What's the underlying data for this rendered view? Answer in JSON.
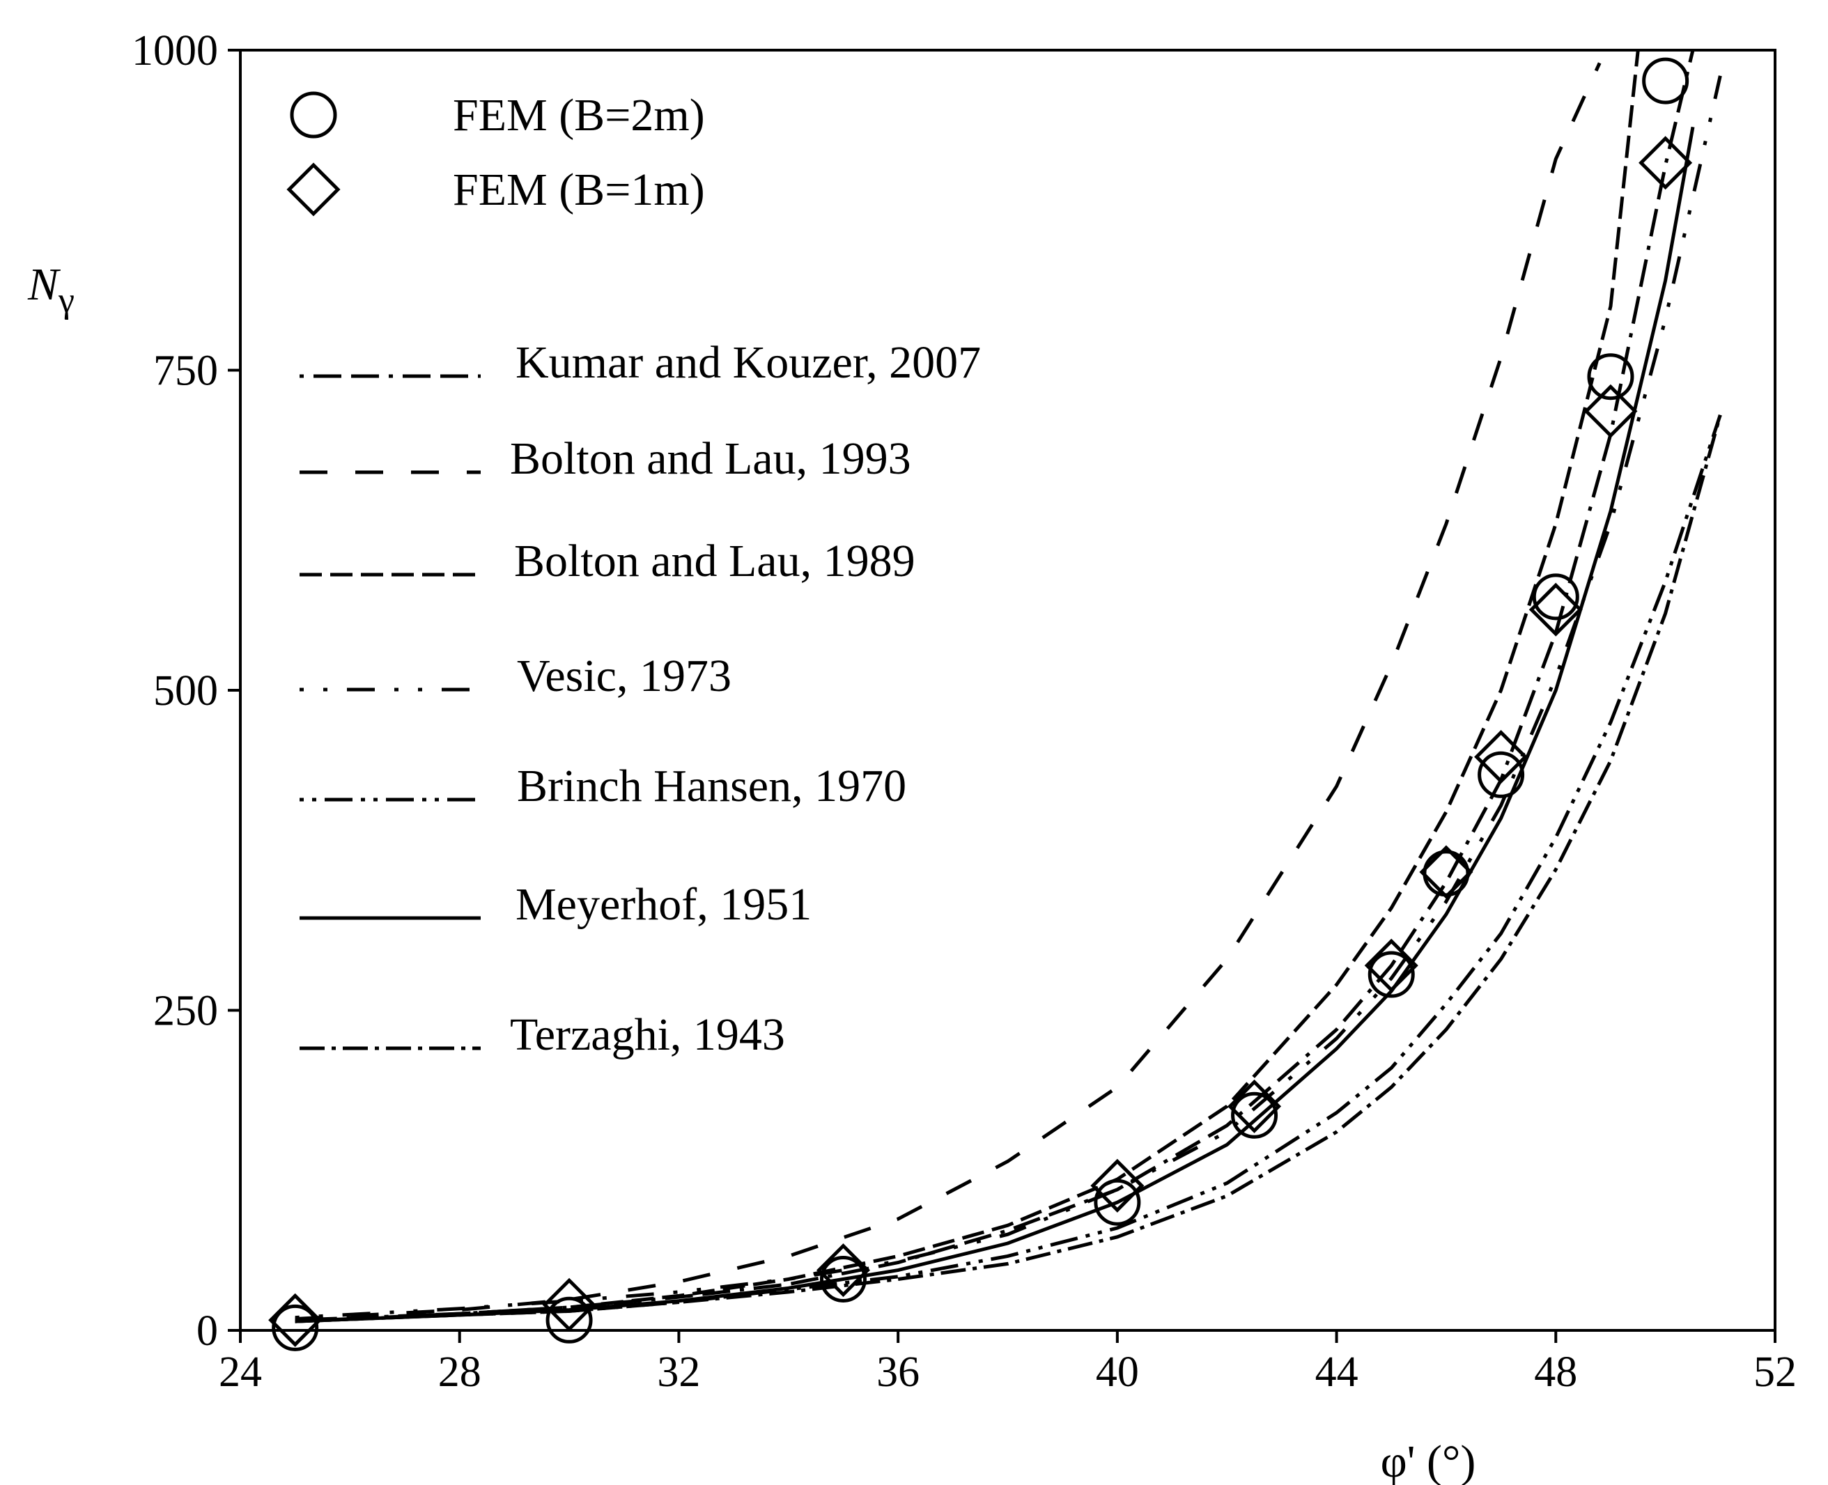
{
  "chart_data": {
    "type": "line",
    "title": "",
    "xlabel": "φ' (°)",
    "ylabel": "N",
    "ylabel_subscript": "γ",
    "xlim": [
      24,
      52
    ],
    "ylim": [
      0,
      1000
    ],
    "x_ticks": [
      24,
      28,
      32,
      36,
      40,
      44,
      48,
      52
    ],
    "y_ticks": [
      0,
      250,
      500,
      750,
      1000
    ],
    "grid": false,
    "legend_position": "top-left",
    "markers": [
      {
        "name": "FEM (B=2m)",
        "symbol": "circle",
        "points": [
          [
            25,
            2
          ],
          [
            30,
            8
          ],
          [
            35,
            40
          ],
          [
            40,
            100
          ],
          [
            42.5,
            168
          ],
          [
            45,
            278
          ],
          [
            46,
            357
          ],
          [
            47,
            434
          ],
          [
            48,
            573
          ],
          [
            49,
            745
          ],
          [
            50,
            976
          ]
        ]
      },
      {
        "name": "FEM (B=1m)",
        "symbol": "diamond",
        "points": [
          [
            25,
            8
          ],
          [
            30,
            20
          ],
          [
            35,
            47
          ],
          [
            40,
            113
          ],
          [
            42.5,
            175
          ],
          [
            45,
            285
          ],
          [
            46,
            358
          ],
          [
            47,
            448
          ],
          [
            48,
            563
          ],
          [
            49,
            718
          ],
          [
            50,
            912
          ]
        ]
      }
    ],
    "series": [
      {
        "name": "Kumar and Kouzer, 2007",
        "dash": "6 14 40 14 40 14",
        "points": [
          [
            25,
            8
          ],
          [
            28,
            13
          ],
          [
            30,
            18
          ],
          [
            32,
            26
          ],
          [
            34,
            36
          ],
          [
            36,
            53
          ],
          [
            38,
            78
          ],
          [
            40,
            110
          ],
          [
            42,
            160
          ],
          [
            44,
            235
          ],
          [
            45,
            285
          ],
          [
            46,
            350
          ],
          [
            47,
            430
          ],
          [
            48,
            545
          ],
          [
            49,
            700
          ],
          [
            50,
            910
          ],
          [
            50.5,
            1000
          ]
        ]
      },
      {
        "name": "Bolton and Lau, 1993",
        "dash": "40 40",
        "points": [
          [
            25,
            9
          ],
          [
            28,
            16
          ],
          [
            30,
            24
          ],
          [
            32,
            38
          ],
          [
            34,
            58
          ],
          [
            36,
            87
          ],
          [
            38,
            132
          ],
          [
            40,
            190
          ],
          [
            42,
            290
          ],
          [
            44,
            425
          ],
          [
            45,
            520
          ],
          [
            46,
            630
          ],
          [
            47,
            760
          ],
          [
            48,
            915
          ],
          [
            48.8,
            990
          ]
        ]
      },
      {
        "name": "Bolton and Lau, 1989",
        "dash": "32 12",
        "points": [
          [
            25,
            7
          ],
          [
            28,
            13
          ],
          [
            30,
            18
          ],
          [
            32,
            27
          ],
          [
            34,
            40
          ],
          [
            36,
            58
          ],
          [
            38,
            82
          ],
          [
            40,
            118
          ],
          [
            42,
            175
          ],
          [
            44,
            270
          ],
          [
            45,
            330
          ],
          [
            46,
            405
          ],
          [
            47,
            500
          ],
          [
            48,
            630
          ],
          [
            49,
            800
          ],
          [
            49.5,
            1000
          ]
        ]
      },
      {
        "name": "Vesic, 1973",
        "dash": "6 28 6 28 40 28",
        "points": [
          [
            25,
            10
          ],
          [
            28,
            17
          ],
          [
            30,
            23
          ],
          [
            32,
            30
          ],
          [
            34,
            40
          ],
          [
            36,
            54
          ],
          [
            38,
            75
          ],
          [
            40,
            110
          ],
          [
            42,
            155
          ],
          [
            44,
            228
          ],
          [
            45,
            275
          ],
          [
            46,
            335
          ],
          [
            47,
            410
          ],
          [
            48,
            510
          ],
          [
            49,
            630
          ],
          [
            50,
            790
          ],
          [
            51,
            980
          ]
        ]
      },
      {
        "name": "Brinch Hansen, 1970",
        "dash": "6 12 6 12 40 12",
        "points": [
          [
            25,
            7
          ],
          [
            28,
            12
          ],
          [
            30,
            15
          ],
          [
            32,
            22
          ],
          [
            34,
            32
          ],
          [
            36,
            42
          ],
          [
            38,
            58
          ],
          [
            40,
            80
          ],
          [
            42,
            115
          ],
          [
            44,
            170
          ],
          [
            45,
            205
          ],
          [
            46,
            255
          ],
          [
            47,
            310
          ],
          [
            48,
            385
          ],
          [
            49,
            475
          ],
          [
            50,
            585
          ],
          [
            51,
            715
          ]
        ]
      },
      {
        "name": "Meyerhof, 1951",
        "dash": "",
        "points": [
          [
            25,
            7
          ],
          [
            28,
            12
          ],
          [
            30,
            16
          ],
          [
            32,
            23
          ],
          [
            34,
            33
          ],
          [
            36,
            47
          ],
          [
            38,
            68
          ],
          [
            40,
            100
          ],
          [
            42,
            145
          ],
          [
            44,
            220
          ],
          [
            45,
            265
          ],
          [
            46,
            325
          ],
          [
            47,
            400
          ],
          [
            48,
            500
          ],
          [
            49,
            640
          ],
          [
            50,
            820
          ],
          [
            50.5,
            940
          ]
        ]
      },
      {
        "name": "Terzaghi, 1943",
        "dash": "36 10 6 10",
        "points": [
          [
            25,
            7
          ],
          [
            28,
            12
          ],
          [
            30,
            15
          ],
          [
            32,
            22
          ],
          [
            34,
            30
          ],
          [
            36,
            40
          ],
          [
            38,
            52
          ],
          [
            40,
            73
          ],
          [
            42,
            105
          ],
          [
            44,
            155
          ],
          [
            45,
            190
          ],
          [
            46,
            235
          ],
          [
            47,
            290
          ],
          [
            48,
            360
          ],
          [
            49,
            445
          ],
          [
            50,
            560
          ],
          [
            51,
            715
          ]
        ]
      }
    ]
  }
}
